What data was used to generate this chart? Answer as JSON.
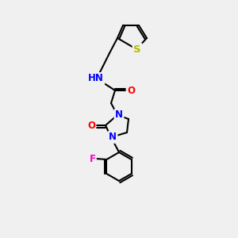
{
  "background_color": "#f0f0f0",
  "bond_color": "#000000",
  "bond_width": 1.5,
  "atom_colors": {
    "N": "#0000ff",
    "O": "#ff0000",
    "S": "#b8b800",
    "F": "#ff00cc",
    "H": "#008080",
    "C": "#000000"
  },
  "font_size": 8.5
}
